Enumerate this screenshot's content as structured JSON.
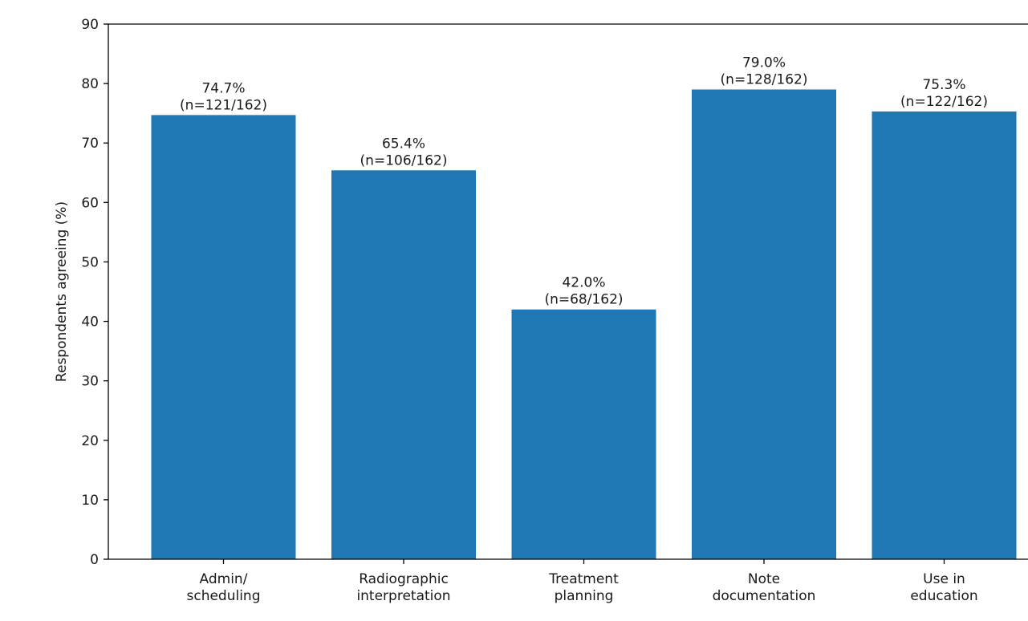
{
  "chart_data": {
    "type": "bar",
    "categories": [
      [
        "Admin/",
        "scheduling"
      ],
      [
        "Radiographic",
        "interpretation"
      ],
      [
        "Treatment",
        "planning"
      ],
      [
        "Note",
        "documentation"
      ],
      [
        "Use in",
        "education"
      ]
    ],
    "values": [
      74.7,
      65.4,
      42.0,
      79.0,
      75.3
    ],
    "data_labels": [
      [
        "74.7%",
        "(n=121/162)"
      ],
      [
        "65.4%",
        "(n=106/162)"
      ],
      [
        "42.0%",
        "(n=68/162)"
      ],
      [
        "79.0%",
        "(n=128/162)"
      ],
      [
        "75.3%",
        "(n=122/162)"
      ]
    ],
    "title": "",
    "xlabel": "",
    "ylabel": "Respondents agreeing (%)",
    "ylim": [
      0,
      90
    ],
    "yticks": [
      0,
      10,
      20,
      30,
      40,
      50,
      60,
      70,
      80,
      90
    ],
    "grid": false,
    "bar_color": "#1f77b4"
  }
}
